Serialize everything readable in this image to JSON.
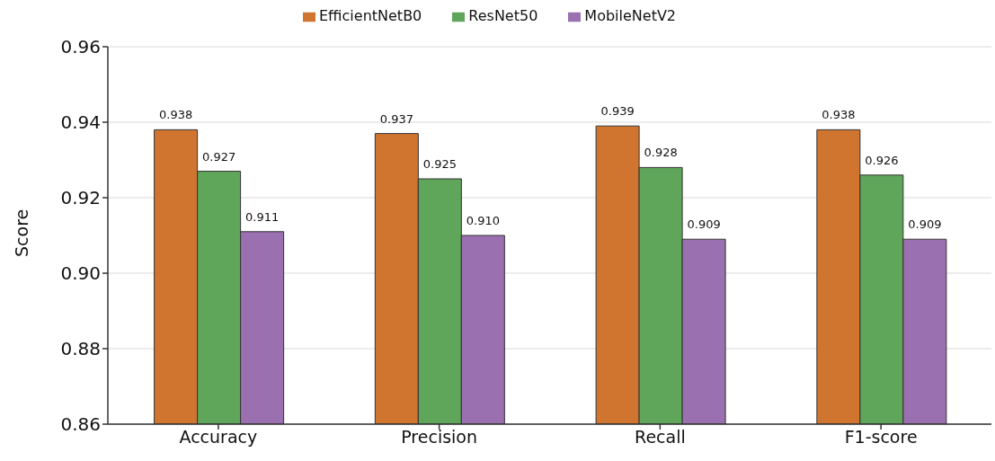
{
  "chart_data": {
    "type": "bar",
    "ylabel": "Score",
    "categories": [
      "Accuracy",
      "Precision",
      "Recall",
      "F1-score"
    ],
    "series": [
      {
        "name": "EfficientNetB0",
        "color": "#d07530",
        "values": [
          0.938,
          0.937,
          0.939,
          0.938
        ],
        "value_labels": [
          "0.938",
          "0.937",
          "0.939",
          "0.938"
        ]
      },
      {
        "name": "ResNet50",
        "color": "#5fa55a",
        "values": [
          0.927,
          0.925,
          0.928,
          0.926
        ],
        "value_labels": [
          "0.927",
          "0.925",
          "0.928",
          "0.926"
        ]
      },
      {
        "name": "MobileNetV2",
        "color": "#9b70b0",
        "values": [
          0.911,
          0.91,
          0.909,
          0.909
        ],
        "value_labels": [
          "0.911",
          "0.910",
          "0.909",
          "0.909"
        ]
      }
    ],
    "ylim": [
      0.86,
      0.96
    ],
    "yticks": [
      {
        "value": 0.86,
        "label": "0.86"
      },
      {
        "value": 0.88,
        "label": "0.88"
      },
      {
        "value": 0.9,
        "label": "0.90"
      },
      {
        "value": 0.92,
        "label": "0.92"
      },
      {
        "value": 0.94,
        "label": "0.94"
      },
      {
        "value": 0.96,
        "label": "0.96"
      }
    ],
    "grid": "y",
    "legend": "top"
  }
}
